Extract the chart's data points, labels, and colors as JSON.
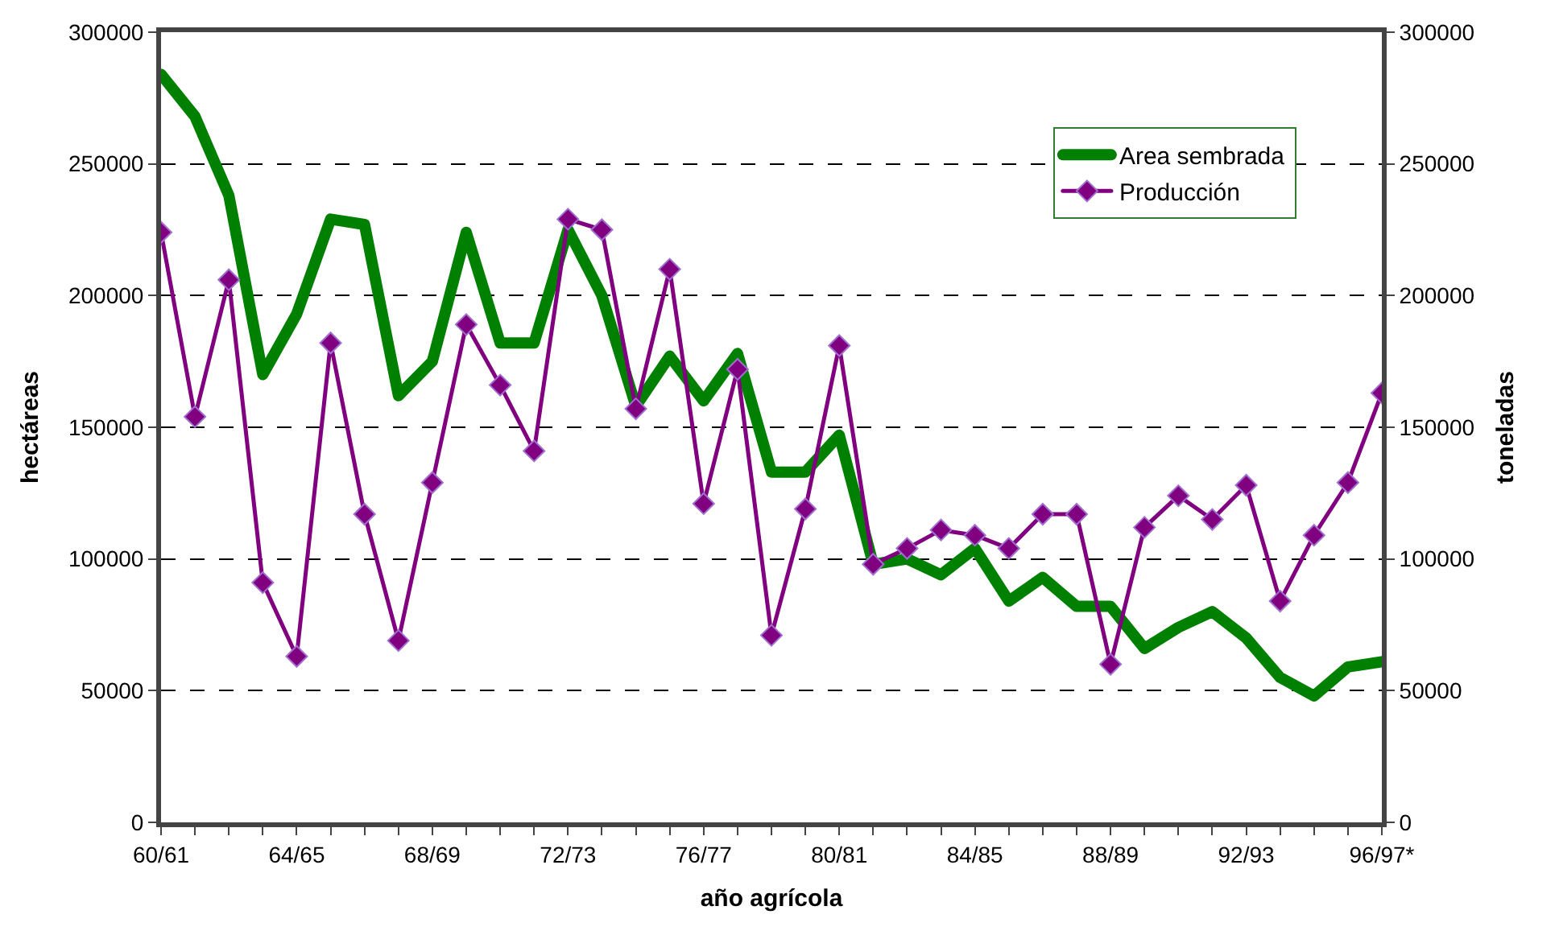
{
  "chart_data": {
    "type": "line",
    "xlabel": "año agrícola",
    "ylabel": "hectáreas",
    "y2label": "toneladas",
    "categories": [
      "60/61",
      null,
      null,
      null,
      "64/65",
      null,
      null,
      null,
      "68/69",
      null,
      null,
      null,
      "72/73",
      null,
      null,
      null,
      "76/77",
      null,
      null,
      null,
      "80/81",
      null,
      null,
      null,
      "84/85",
      null,
      null,
      null,
      "88/89",
      null,
      null,
      null,
      "92/93",
      null,
      null,
      null,
      "96/97*"
    ],
    "series": [
      {
        "name": "Area sembrada",
        "color": "#008000",
        "marker": "none",
        "values": [
          284000,
          268000,
          238000,
          170000,
          193000,
          229000,
          227000,
          162000,
          175000,
          224000,
          182000,
          182000,
          225000,
          200000,
          158000,
          177000,
          160000,
          178000,
          133000,
          133000,
          147000,
          98000,
          100000,
          94000,
          104000,
          84000,
          93000,
          82000,
          82000,
          66000,
          74000,
          80000,
          70000,
          55000,
          48000,
          59000,
          61000
        ]
      },
      {
        "name": "Producción",
        "color": "#800080",
        "marker": "diamond",
        "axis": "y2",
        "values": [
          224000,
          154000,
          206000,
          91000,
          63000,
          182000,
          117000,
          69000,
          129000,
          189000,
          166000,
          141000,
          229000,
          225000,
          157000,
          210000,
          121000,
          172000,
          71000,
          119000,
          181000,
          98000,
          104000,
          111000,
          109000,
          104000,
          117000,
          117000,
          60000,
          112000,
          124000,
          115000,
          128000,
          84000,
          109000,
          129000,
          163000
        ]
      }
    ],
    "ylim": [
      0,
      300000
    ],
    "yticks": [
      0,
      50000,
      100000,
      150000,
      200000,
      250000,
      300000
    ],
    "y2lim": [
      0,
      300000
    ],
    "y2ticks": [
      0,
      50000,
      100000,
      150000,
      200000,
      250000,
      300000
    ],
    "grid": "y",
    "legend": "top right",
    "line_style": "solid"
  }
}
